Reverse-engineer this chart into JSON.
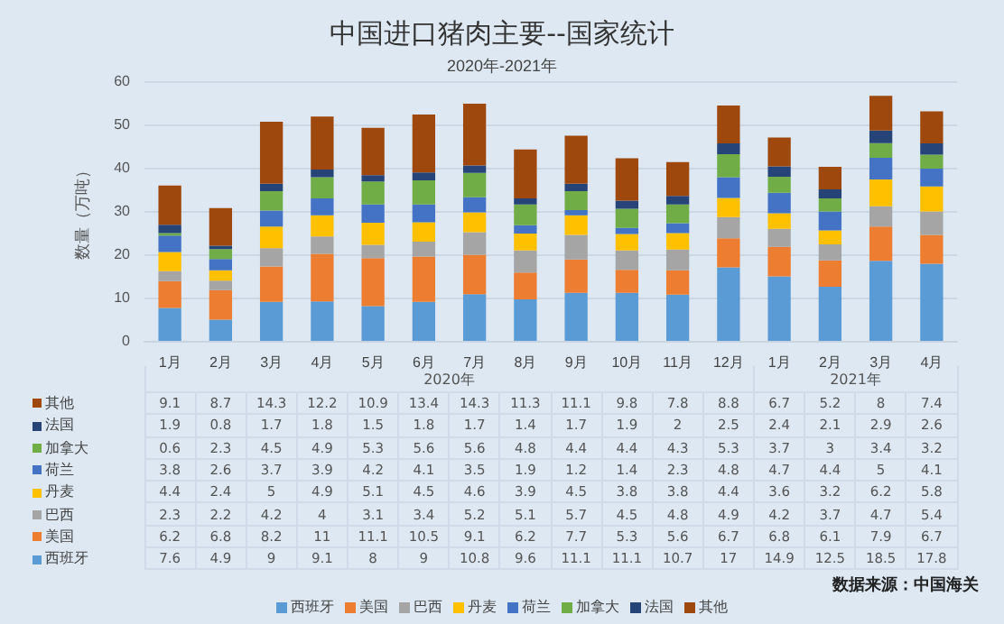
{
  "chart_data": {
    "type": "bar",
    "stacked": true,
    "title": "中国进口猪肉主要--国家统计",
    "subtitle": "2020年-2021年",
    "ylabel": "数量（万吨）",
    "categories": [
      "1月",
      "2月",
      "3月",
      "4月",
      "5月",
      "6月",
      "7月",
      "8月",
      "9月",
      "10月",
      "11月",
      "12月",
      "1月",
      "2月",
      "3月",
      "4月"
    ],
    "ylim": [
      0,
      60
    ],
    "yticks": [
      0,
      10,
      20,
      30,
      40,
      50,
      60
    ],
    "grid": "y",
    "legend": "bottom",
    "data_labels": true,
    "series": [
      {
        "name": "西班牙",
        "color": "#5b9bd5",
        "values": [
          7.6,
          4.9,
          9,
          9.1,
          8,
          9,
          10.8,
          9.6,
          11.1,
          11.1,
          10.7,
          17,
          14.9,
          12.5,
          18.5,
          17.8
        ]
      },
      {
        "name": "美国",
        "color": "#ed7d31",
        "values": [
          6.2,
          6.8,
          8.2,
          11,
          11.1,
          10.5,
          9.1,
          6.2,
          7.7,
          5.3,
          5.6,
          6.7,
          6.8,
          6.1,
          7.9,
          6.7
        ]
      },
      {
        "name": "巴西",
        "color": "#a5a5a5",
        "values": [
          2.3,
          2.2,
          4.2,
          4,
          3.1,
          3.4,
          5.2,
          5.1,
          5.7,
          4.5,
          4.8,
          4.9,
          4.2,
          3.7,
          4.7,
          5.4
        ]
      },
      {
        "name": "丹麦",
        "color": "#ffc000",
        "values": [
          4.4,
          2.4,
          5,
          4.9,
          5.1,
          4.5,
          4.6,
          3.9,
          4.5,
          3.8,
          3.8,
          4.4,
          3.6,
          3.2,
          6.2,
          5.8
        ]
      },
      {
        "name": "荷兰",
        "color": "#4472c4",
        "values": [
          3.8,
          2.6,
          3.7,
          3.9,
          4.2,
          4.1,
          3.5,
          1.9,
          1.2,
          1.4,
          2.3,
          4.8,
          4.7,
          4.4,
          5,
          4.1
        ]
      },
      {
        "name": "加拿大",
        "color": "#70ad47",
        "values": [
          0.6,
          2.3,
          4.5,
          4.9,
          5.3,
          5.6,
          5.6,
          4.8,
          4.4,
          4.4,
          4.3,
          5.3,
          3.7,
          3,
          3.4,
          3.2
        ]
      },
      {
        "name": "法国",
        "color": "#264478",
        "values": [
          1.9,
          0.8,
          1.7,
          1.8,
          1.5,
          1.8,
          1.7,
          1.4,
          1.7,
          1.9,
          2,
          2.5,
          2.4,
          2.1,
          2.9,
          2.6
        ]
      },
      {
        "name": "其他",
        "color": "#9e480e",
        "values": [
          9.1,
          8.7,
          14.3,
          12.2,
          10.9,
          13.4,
          14.3,
          11.3,
          11.1,
          9.8,
          7.8,
          8.8,
          6.7,
          5.2,
          8,
          7.4
        ]
      }
    ],
    "annotations": [
      "2020年",
      "2021年",
      "数据来源：中国海关"
    ]
  }
}
